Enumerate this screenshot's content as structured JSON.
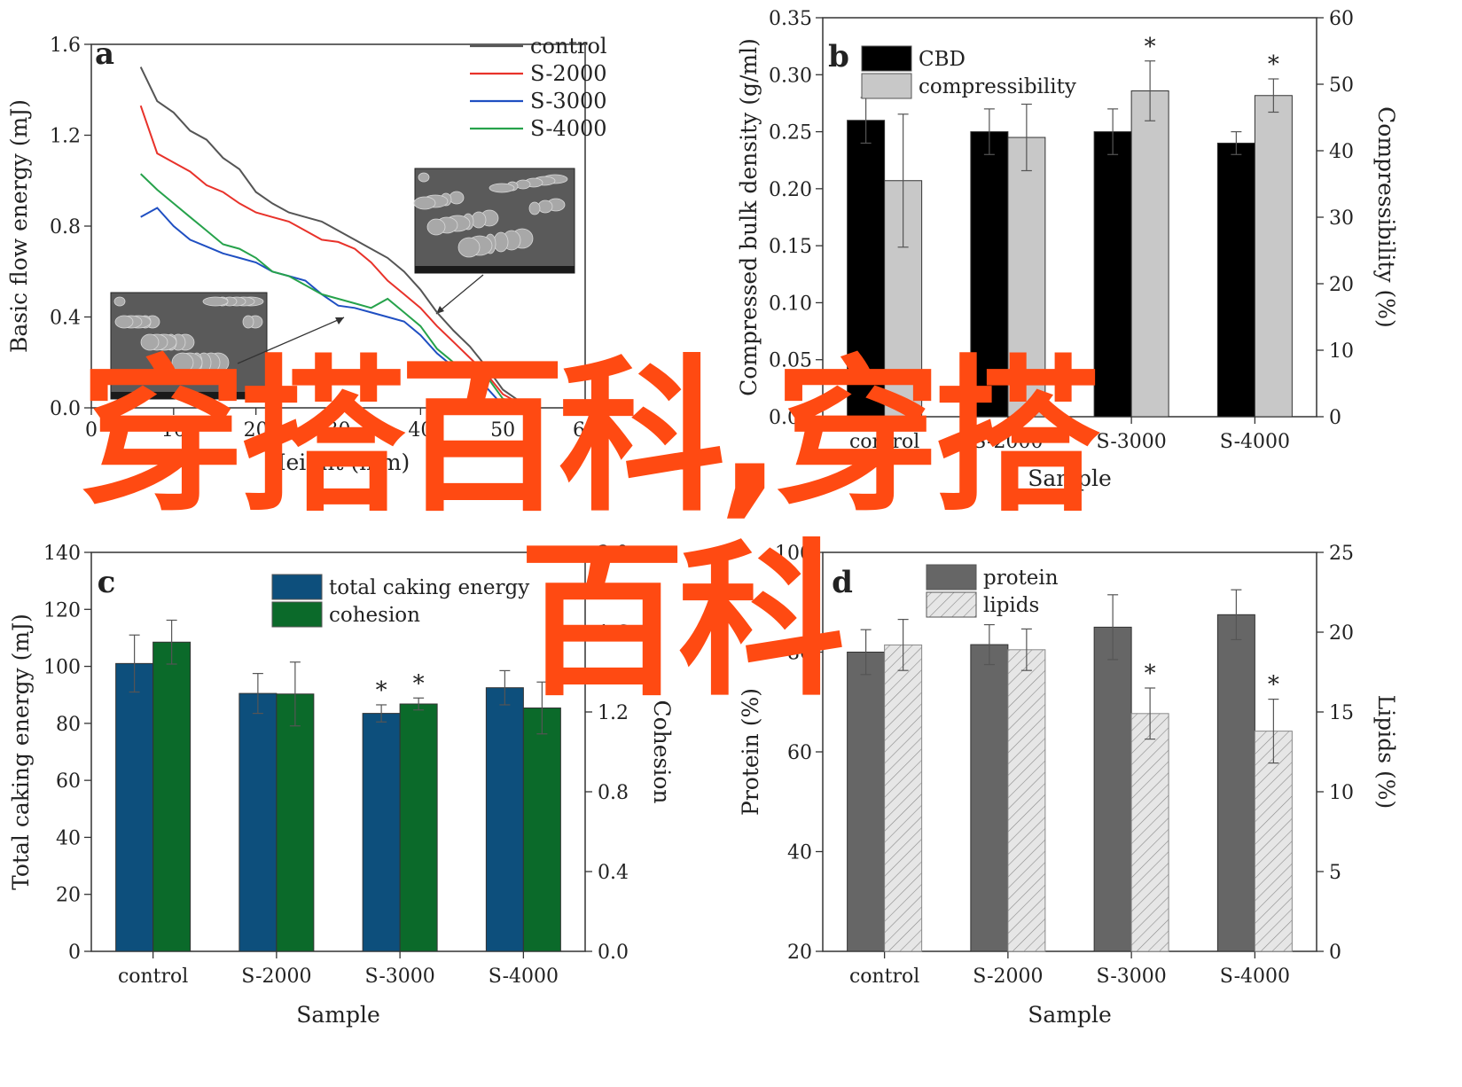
{
  "watermark": {
    "line1": "穿搭百科,穿搭",
    "line2": "百科",
    "color": "#ff4a12"
  },
  "chart_data": [
    {
      "panel": "a",
      "type": "line",
      "xlabel": "Height (mm)",
      "ylabel": "Basic flow energy (mJ)",
      "xlim": [
        0,
        60
      ],
      "ylim": [
        0,
        1.6
      ],
      "xticks": [
        "0",
        "10",
        "20",
        "30",
        "40",
        "50",
        "60"
      ],
      "yticks": [
        "0.0",
        "0.4",
        "0.8",
        "1.2",
        "1.6"
      ],
      "legend_position": "top-right",
      "series": [
        {
          "name": "control",
          "color": "#555555",
          "x": [
            6,
            8,
            10,
            12,
            14,
            16,
            18,
            20,
            22,
            24,
            26,
            28,
            30,
            32,
            34,
            36,
            38,
            40,
            42,
            44,
            46,
            48,
            50,
            52,
            54
          ],
          "y": [
            1.5,
            1.35,
            1.3,
            1.22,
            1.18,
            1.1,
            1.05,
            0.95,
            0.9,
            0.86,
            0.84,
            0.82,
            0.78,
            0.74,
            0.7,
            0.66,
            0.6,
            0.52,
            0.42,
            0.34,
            0.27,
            0.18,
            0.08,
            0.03,
            0.02
          ]
        },
        {
          "name": "S-2000",
          "color": "#e8322a",
          "x": [
            6,
            8,
            10,
            12,
            14,
            16,
            18,
            20,
            22,
            24,
            26,
            28,
            30,
            32,
            34,
            36,
            38,
            40,
            42,
            44,
            46,
            48,
            50,
            52,
            54
          ],
          "y": [
            1.33,
            1.12,
            1.08,
            1.04,
            0.98,
            0.95,
            0.9,
            0.86,
            0.84,
            0.82,
            0.78,
            0.74,
            0.73,
            0.7,
            0.64,
            0.56,
            0.5,
            0.44,
            0.36,
            0.29,
            0.22,
            0.15,
            0.06,
            0.02,
            0.02
          ]
        },
        {
          "name": "S-3000",
          "color": "#1f4fc2",
          "x": [
            6,
            8,
            10,
            12,
            14,
            16,
            18,
            20,
            22,
            24,
            26,
            28,
            30,
            32,
            34,
            36,
            38,
            40,
            42,
            44,
            46,
            48,
            50,
            52,
            54
          ],
          "y": [
            0.84,
            0.88,
            0.8,
            0.74,
            0.71,
            0.68,
            0.66,
            0.64,
            0.6,
            0.58,
            0.56,
            0.5,
            0.45,
            0.44,
            0.42,
            0.4,
            0.38,
            0.32,
            0.24,
            0.18,
            0.14,
            0.09,
            0.01,
            0.01,
            0.02
          ]
        },
        {
          "name": "S-4000",
          "color": "#26a24b",
          "x": [
            6,
            8,
            10,
            12,
            14,
            16,
            18,
            20,
            22,
            24,
            26,
            28,
            30,
            32,
            34,
            36,
            38,
            40,
            42,
            44,
            46,
            48,
            50,
            52,
            54
          ],
          "y": [
            1.03,
            0.96,
            0.9,
            0.84,
            0.78,
            0.72,
            0.7,
            0.66,
            0.6,
            0.58,
            0.54,
            0.5,
            0.48,
            0.46,
            0.44,
            0.48,
            0.42,
            0.36,
            0.26,
            0.2,
            0.17,
            0.14,
            0.04,
            0.02,
            0.02
          ]
        }
      ]
    },
    {
      "panel": "b",
      "type": "bar",
      "categories": [
        "control",
        "S-2000",
        "S-3000",
        "S-4000"
      ],
      "xlabel": "Sample",
      "ylabel": "Compressed bulk density (g/ml)",
      "y2label": "Compressibility (%)",
      "ylim": [
        0,
        0.35
      ],
      "y2lim": [
        0,
        60
      ],
      "yticks": [
        "0.00",
        "0.05",
        "0.10",
        "0.15",
        "0.20",
        "0.25",
        "0.30",
        "0.35"
      ],
      "y2ticks": [
        "0",
        "10",
        "20",
        "30",
        "40",
        "50",
        "60"
      ],
      "legend_position": "top-left",
      "series": [
        {
          "name": "CBD",
          "axis": "left",
          "color": "#000000",
          "values": [
            0.26,
            0.25,
            0.25,
            0.24
          ],
          "errors": [
            0.02,
            0.02,
            0.02,
            0.01
          ],
          "marks": [
            "",
            "",
            "",
            ""
          ]
        },
        {
          "name": "compressibility",
          "axis": "right",
          "color": "#c8c8c8",
          "values": [
            35.5,
            42.0,
            49.0,
            48.3
          ],
          "errors": [
            10.0,
            5.0,
            4.5,
            2.5
          ],
          "marks": [
            "",
            "",
            "*",
            "*"
          ]
        }
      ]
    },
    {
      "panel": "c",
      "type": "bar",
      "categories": [
        "control",
        "S-2000",
        "S-3000",
        "S-4000"
      ],
      "xlabel": "Sample",
      "ylabel": "Total caking energy (mJ)",
      "y2label": "Cohesion",
      "ylim": [
        0,
        140
      ],
      "y2lim": [
        0,
        2.0
      ],
      "yticks": [
        "0",
        "20",
        "40",
        "60",
        "80",
        "100",
        "120",
        "140"
      ],
      "y2ticks": [
        "0.0",
        "0.4",
        "0.8",
        "1.2",
        "1.6",
        "2.0"
      ],
      "legend_position": "top-center",
      "series": [
        {
          "name": "total caking energy",
          "axis": "left",
          "color": "#0d4f7c",
          "values": [
            101,
            90.5,
            83.5,
            92.5
          ],
          "errors": [
            10,
            7,
            3,
            6
          ],
          "marks": [
            "",
            "",
            "*",
            ""
          ]
        },
        {
          "name": "cohesion",
          "axis": "right",
          "color": "#0b6a2a",
          "values": [
            1.55,
            1.29,
            1.24,
            1.22
          ],
          "errors": [
            0.11,
            0.16,
            0.03,
            0.13
          ],
          "marks": [
            "",
            "",
            "*",
            ""
          ]
        }
      ]
    },
    {
      "panel": "d",
      "type": "bar",
      "categories": [
        "control",
        "S-2000",
        "S-3000",
        "S-4000"
      ],
      "xlabel": "Sample",
      "ylabel": "Protein (%)",
      "y2label": "Lipids (%)",
      "ylim": [
        20,
        100
      ],
      "y2lim": [
        0,
        25
      ],
      "yticks": [
        "20",
        "40",
        "60",
        "80",
        "100"
      ],
      "y2ticks": [
        "0",
        "5",
        "10",
        "15",
        "20",
        "25"
      ],
      "legend_position": "top-left",
      "series": [
        {
          "name": "protein",
          "axis": "left",
          "color": "#666666",
          "values": [
            80,
            81.5,
            85,
            87.5
          ],
          "errors": [
            4.5,
            4,
            6.5,
            5
          ],
          "marks": [
            "",
            "",
            "",
            ""
          ]
        },
        {
          "name": "lipids",
          "axis": "right",
          "color": "#dcdcdc",
          "hatch": true,
          "values": [
            19.2,
            18.9,
            14.9,
            13.8
          ],
          "errors": [
            1.6,
            1.3,
            1.6,
            2.0
          ],
          "marks": [
            "",
            "",
            "*",
            "*"
          ]
        }
      ]
    }
  ]
}
